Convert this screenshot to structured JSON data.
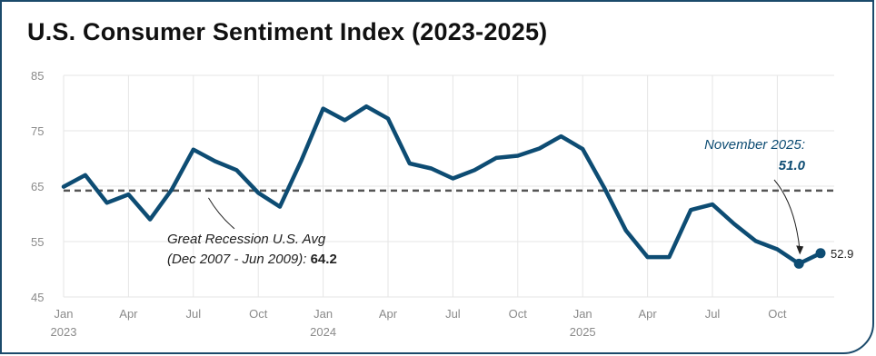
{
  "title": "U.S. Consumer Sentiment Index (2023-2025)",
  "colors": {
    "line": "#0d4c73",
    "grid": "#e6e6e6",
    "reference": "#555555",
    "text": "#111111",
    "tick": "#8a8a8a",
    "annotation": "#0d4c73"
  },
  "chart_data": {
    "type": "line",
    "title": "U.S. Consumer Sentiment Index (2023-2025)",
    "xlabel": "",
    "ylabel": "",
    "ylim": [
      45,
      85
    ],
    "yticks": [
      45,
      55,
      65,
      75,
      85
    ],
    "grid": true,
    "x": [
      "2023-01",
      "2023-02",
      "2023-03",
      "2023-04",
      "2023-05",
      "2023-06",
      "2023-07",
      "2023-08",
      "2023-09",
      "2023-10",
      "2023-11",
      "2023-12",
      "2024-01",
      "2024-02",
      "2024-03",
      "2024-04",
      "2024-05",
      "2024-06",
      "2024-07",
      "2024-08",
      "2024-09",
      "2024-10",
      "2024-11",
      "2024-12",
      "2025-01",
      "2025-02",
      "2025-03",
      "2025-04",
      "2025-05",
      "2025-06",
      "2025-07",
      "2025-08",
      "2025-09",
      "2025-10",
      "2025-11",
      "2025-12"
    ],
    "xticks": [
      {
        "index": 0,
        "label": "Jan",
        "year": "2023"
      },
      {
        "index": 3,
        "label": "Apr",
        "year": ""
      },
      {
        "index": 6,
        "label": "Jul",
        "year": ""
      },
      {
        "index": 9,
        "label": "Oct",
        "year": ""
      },
      {
        "index": 12,
        "label": "Jan",
        "year": "2024"
      },
      {
        "index": 15,
        "label": "Apr",
        "year": ""
      },
      {
        "index": 18,
        "label": "Jul",
        "year": ""
      },
      {
        "index": 21,
        "label": "Oct",
        "year": ""
      },
      {
        "index": 24,
        "label": "Jan",
        "year": "2025"
      },
      {
        "index": 27,
        "label": "Apr",
        "year": ""
      },
      {
        "index": 30,
        "label": "Jul",
        "year": ""
      },
      {
        "index": 33,
        "label": "Oct",
        "year": ""
      }
    ],
    "series": [
      {
        "name": "",
        "values": [
          64.9,
          67.0,
          62.0,
          63.5,
          59.0,
          64.4,
          71.6,
          69.5,
          67.9,
          63.8,
          61.3,
          69.7,
          79.0,
          76.9,
          79.4,
          77.2,
          69.1,
          68.2,
          66.4,
          67.9,
          70.1,
          70.5,
          71.8,
          74.0,
          71.7,
          64.7,
          57.0,
          52.2,
          52.2,
          60.7,
          61.7,
          58.2,
          55.1,
          53.6,
          51.0,
          52.9
        ]
      }
    ],
    "reference_line": {
      "value": 64.2,
      "label_line1": "Great Recession U.S. Avg",
      "label_line2_prefix": "(Dec 2007 - Jun 2009): ",
      "label_value": "64.2"
    },
    "annotations": [
      {
        "index": 34,
        "label": "November 2025:",
        "value_label": "51.0"
      },
      {
        "index": 35,
        "value_label": "52.9"
      }
    ]
  }
}
